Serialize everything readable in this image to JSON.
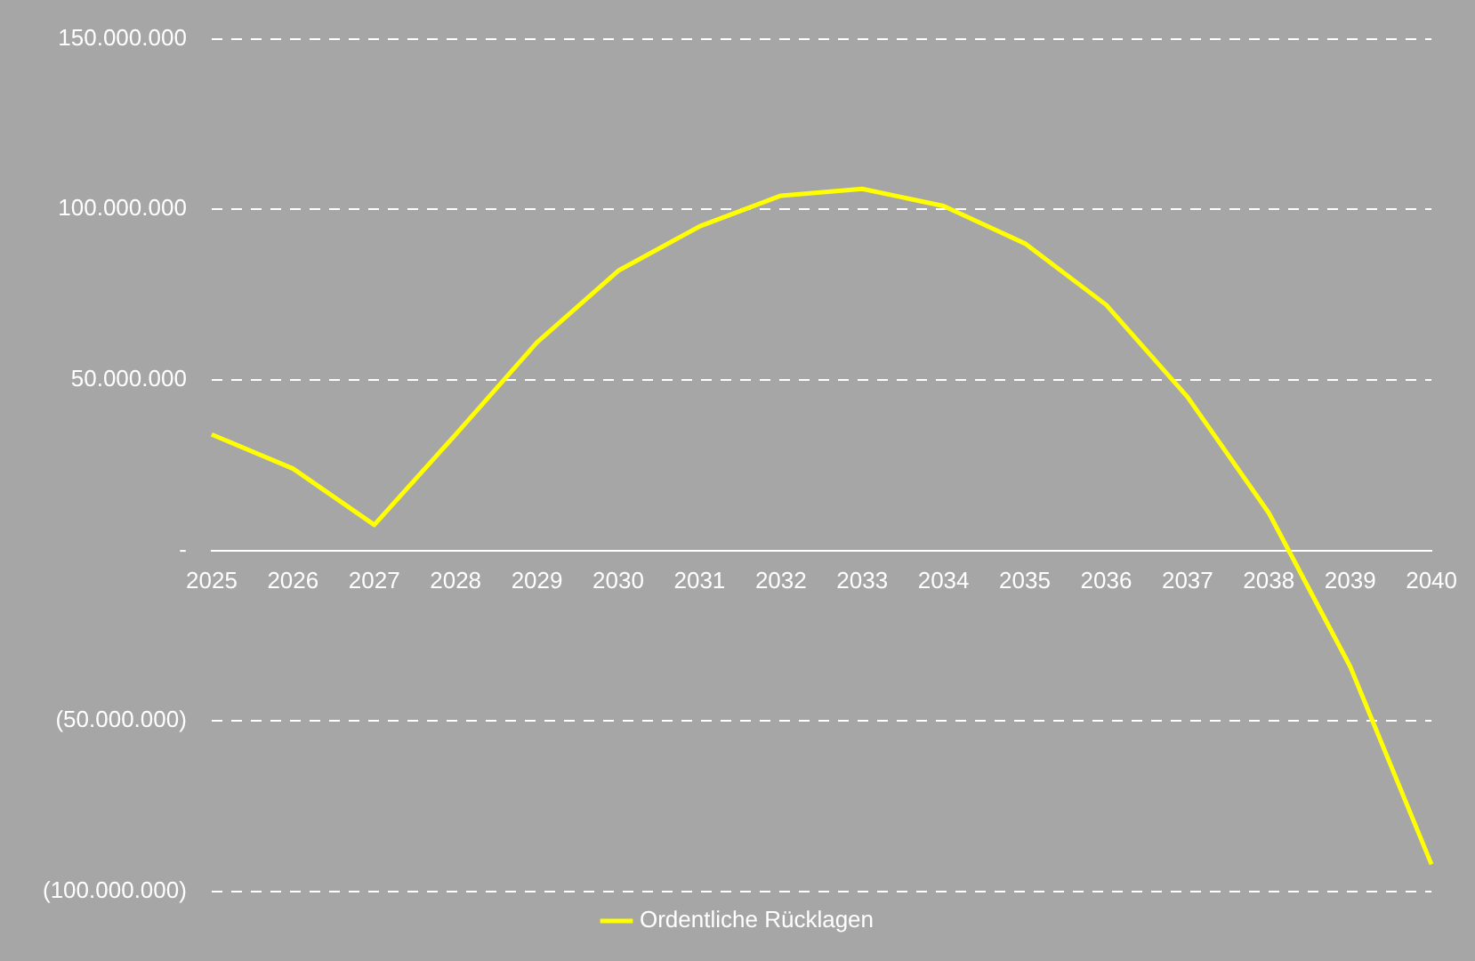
{
  "chart_data": {
    "type": "line",
    "categories": [
      "2025",
      "2026",
      "2027",
      "2028",
      "2029",
      "2030",
      "2031",
      "2032",
      "2033",
      "2034",
      "2035",
      "2036",
      "2037",
      "2038",
      "2039",
      "2040"
    ],
    "series": [
      {
        "name": "Ordentliche Rücklagen",
        "color": "#ffff00",
        "values": [
          34000000,
          24000000,
          7500000,
          34000000,
          61000000,
          82000000,
          95000000,
          104000000,
          106000000,
          101000000,
          90000000,
          72000000,
          45000000,
          11000000,
          -34000000,
          -92000000
        ]
      }
    ],
    "ylim": [
      -100000000,
      150000000
    ],
    "yticks": [
      {
        "value": -100000000,
        "label": "(100.000.000)"
      },
      {
        "value": -50000000,
        "label": "(50.000.000)"
      },
      {
        "value": 0,
        "label": "-"
      },
      {
        "value": 50000000,
        "label": "50.000.000"
      },
      {
        "value": 100000000,
        "label": "100.000.000"
      },
      {
        "value": 150000000,
        "label": "150.000.000"
      }
    ],
    "grid": "y",
    "legend": "bottom",
    "marker": "none",
    "line_style": "solid"
  }
}
